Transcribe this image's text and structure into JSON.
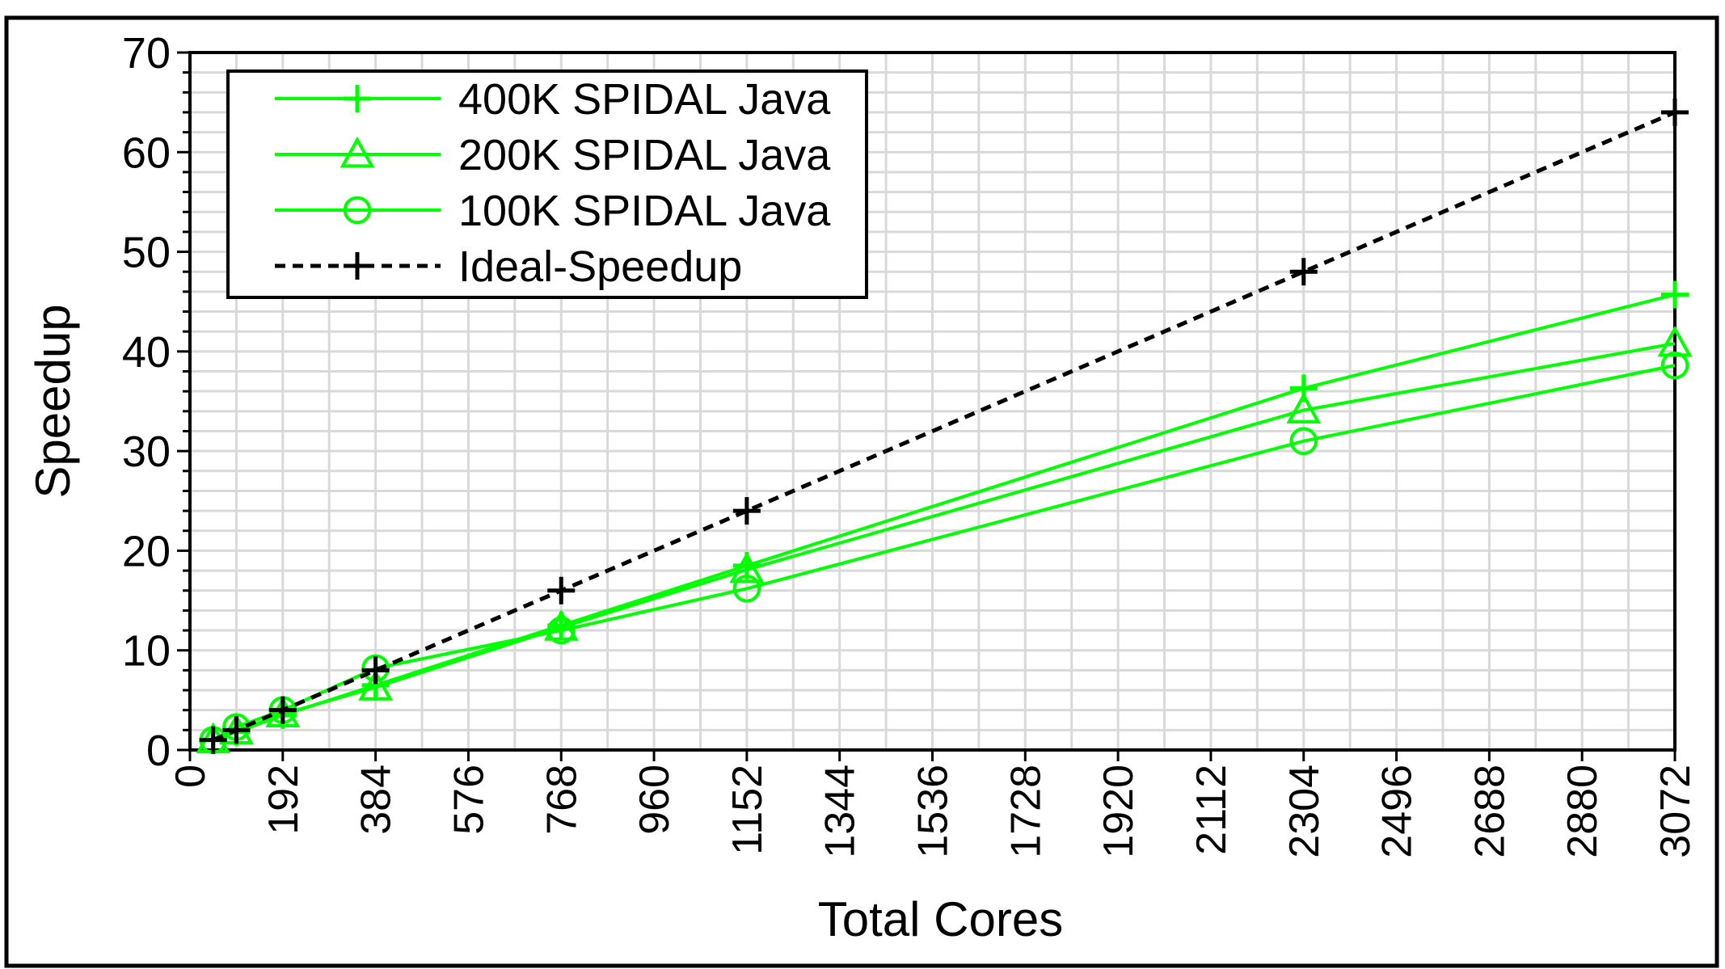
{
  "chart_data": {
    "type": "line",
    "title": "",
    "xlabel": "Total Cores",
    "ylabel": "Speedup",
    "xlim": [
      0,
      3072
    ],
    "ylim": [
      0,
      70
    ],
    "x_ticks": [
      "0",
      "192",
      "384",
      "576",
      "768",
      "960",
      "1152",
      "1344",
      "1536",
      "1728",
      "1920",
      "2112",
      "2304",
      "2496",
      "2688",
      "2880",
      "3072"
    ],
    "y_ticks": [
      "0",
      "10",
      "20",
      "30",
      "40",
      "50",
      "60",
      "70"
    ],
    "grid": true,
    "legend_position": "top-left",
    "series": [
      {
        "name": "400K SPIDAL Java",
        "color": "#00ff00",
        "marker": "plus",
        "dashed": false,
        "x": [
          48,
          96,
          192,
          384,
          768,
          1152,
          2304,
          3072
        ],
        "y": [
          1,
          1.8,
          3.5,
          6.5,
          12.5,
          18.5,
          36.3,
          45.7
        ]
      },
      {
        "name": "200K SPIDAL Java",
        "color": "#00ff00",
        "marker": "triangle",
        "dashed": false,
        "x": [
          48,
          96,
          192,
          384,
          768,
          1152,
          2304,
          3072
        ],
        "y": [
          1,
          1.9,
          3.6,
          6.3,
          12.3,
          18.1,
          34.1,
          40.8
        ]
      },
      {
        "name": "100K SPIDAL Java",
        "color": "#00ff00",
        "marker": "circle",
        "dashed": false,
        "x": [
          48,
          96,
          192,
          384,
          768,
          1152,
          2304,
          3072
        ],
        "y": [
          1,
          2.3,
          4,
          8.2,
          12,
          16.2,
          31,
          38.6
        ]
      },
      {
        "name": "Ideal-Speedup",
        "color": "#000000",
        "marker": "plus",
        "dashed": true,
        "x": [
          48,
          96,
          192,
          384,
          768,
          1152,
          2304,
          3072
        ],
        "y": [
          1,
          2,
          4,
          8,
          16,
          24,
          48,
          64
        ]
      }
    ]
  }
}
